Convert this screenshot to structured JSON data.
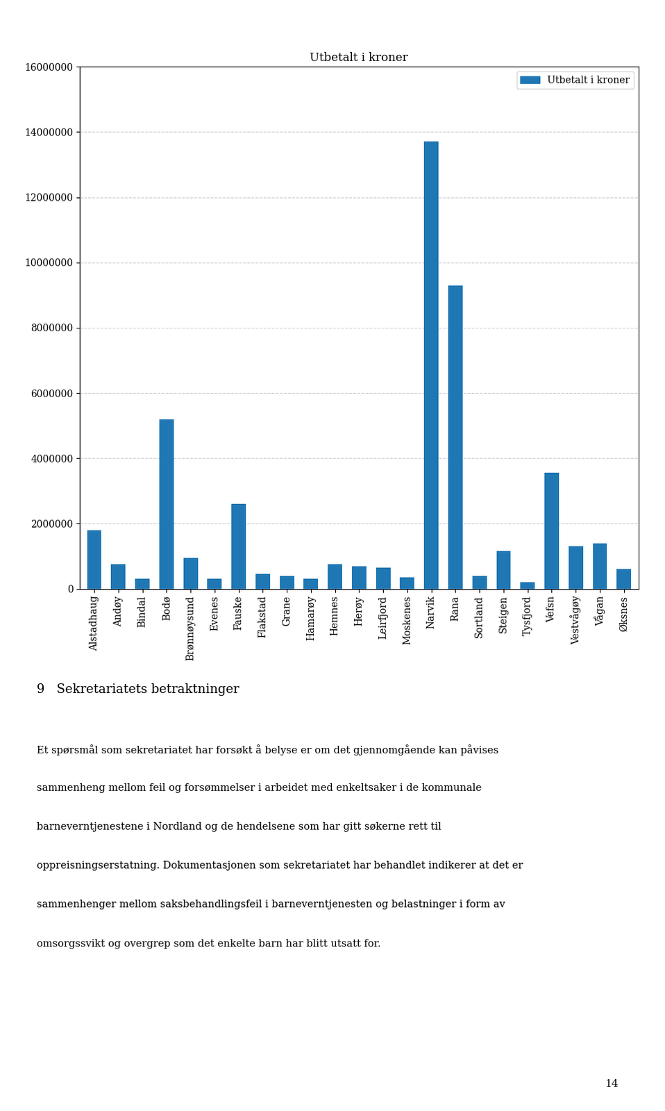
{
  "chart_data": {
    "type": "bar",
    "title": "Utbetalt i kroner",
    "categories": [
      "Alstadhaug",
      "Andøy",
      "Bindal",
      "Bodø",
      "Brønnøysund",
      "Evenes",
      "Fauske",
      "Flakstad",
      "Grane",
      "Hamarøy",
      "Hemnes",
      "Herøy",
      "Leirfjord",
      "Moskenes",
      "Narvik",
      "Rana",
      "Sortland",
      "Steigen",
      "Tysfjord",
      "Vefsn",
      "Vestvågøy",
      "Vågan",
      "Øksnes"
    ],
    "series": [
      {
        "name": "Utbetalt i kroner",
        "values": [
          1800000,
          750000,
          300000,
          5200000,
          950000,
          300000,
          2600000,
          450000,
          400000,
          300000,
          750000,
          700000,
          650000,
          350000,
          13700000,
          9300000,
          400000,
          1150000,
          200000,
          3550000,
          1300000,
          1400000,
          600000
        ]
      }
    ],
    "ylim": [
      0,
      16000000
    ],
    "yticks": [
      0,
      2000000,
      4000000,
      6000000,
      8000000,
      10000000,
      12000000,
      14000000,
      16000000
    ],
    "grid": true,
    "legend": "upper right",
    "annotations": [
      "9   Sekretariatets betraktninger",
      "Et spørsmål som sekretariatet har forsøkt å belyse er om det gjennomgående kan påvises",
      "sammenheng mellom feil og forsømmelser i arbeidet med enkeltsaker i de kommunale",
      "barneverntjenestene i Nordland og de hendelsene som har gitt søkerne rett til",
      "oppreisningserstatning. Dokumentasjonen som sekretariatet har behandlet indikerer at det er",
      "sammenhenger mellom saksbehandlingsfeil i barneverntjenesten og belastninger i form av",
      "omsorgssvikt og overgrep som det enkelte barn har blitt utsatt for.",
      "14"
    ]
  }
}
